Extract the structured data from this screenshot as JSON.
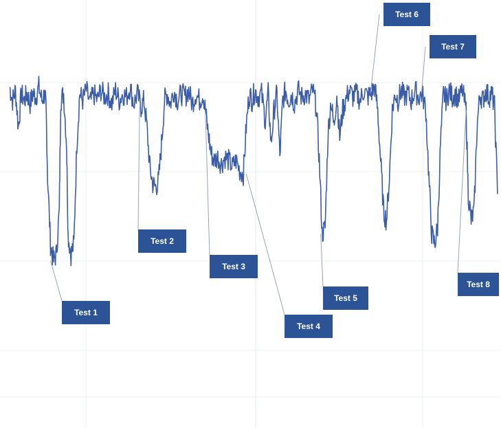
{
  "chart_data": {
    "type": "line",
    "title": "",
    "xlabel": "",
    "ylabel": "",
    "grid": true,
    "line_color": "#3b5ca8",
    "label_box_color": "#2b5395",
    "series": [
      {
        "name": "",
        "points": [
          [
            0,
            0.62
          ],
          [
            0.4,
            0.58
          ],
          [
            0.8,
            0.61
          ],
          [
            1.2,
            0.5
          ],
          [
            1.6,
            0.6
          ],
          [
            2.0,
            0.58
          ],
          [
            2.4,
            0.6
          ],
          [
            2.8,
            0.57
          ],
          [
            3.2,
            0.6
          ],
          [
            3.6,
            0.59
          ],
          [
            4.0,
            0.62
          ],
          [
            4.4,
            0.58
          ],
          [
            4.8,
            0.6
          ],
          [
            5.0,
            0.55
          ],
          [
            5.2,
            0.35
          ],
          [
            5.6,
            0.15
          ],
          [
            6.0,
            0.1
          ],
          [
            6.4,
            0.12
          ],
          [
            6.8,
            0.25
          ],
          [
            7.0,
            0.58
          ],
          [
            7.4,
            0.6
          ],
          [
            7.8,
            0.45
          ],
          [
            8.0,
            0.18
          ],
          [
            8.4,
            0.12
          ],
          [
            8.8,
            0.15
          ],
          [
            9.2,
            0.45
          ],
          [
            9.6,
            0.6
          ],
          [
            10.0,
            0.58
          ],
          [
            10.5,
            0.61
          ],
          [
            11.0,
            0.57
          ],
          [
            11.5,
            0.6
          ],
          [
            12.0,
            0.58
          ],
          [
            12.5,
            0.61
          ],
          [
            13.0,
            0.59
          ],
          [
            13.5,
            0.6
          ],
          [
            14.0,
            0.57
          ],
          [
            14.5,
            0.61
          ],
          [
            15.0,
            0.58
          ],
          [
            15.5,
            0.6
          ],
          [
            16.0,
            0.59
          ],
          [
            16.5,
            0.62
          ],
          [
            17.0,
            0.57
          ],
          [
            17.5,
            0.6
          ],
          [
            18.0,
            0.56
          ],
          [
            18.4,
            0.58
          ],
          [
            18.8,
            0.5
          ],
          [
            19.2,
            0.38
          ],
          [
            19.6,
            0.33
          ],
          [
            20.0,
            0.32
          ],
          [
            20.4,
            0.34
          ],
          [
            20.8,
            0.45
          ],
          [
            21.2,
            0.58
          ],
          [
            21.6,
            0.6
          ],
          [
            22.0,
            0.57
          ],
          [
            22.5,
            0.61
          ],
          [
            23.0,
            0.58
          ],
          [
            23.5,
            0.6
          ],
          [
            24.0,
            0.59
          ],
          [
            24.5,
            0.61
          ],
          [
            25.0,
            0.57
          ],
          [
            25.5,
            0.6
          ],
          [
            26.0,
            0.58
          ],
          [
            26.5,
            0.6
          ],
          [
            26.8,
            0.55
          ],
          [
            27.2,
            0.48
          ],
          [
            27.6,
            0.42
          ],
          [
            28.0,
            0.4
          ],
          [
            28.5,
            0.41
          ],
          [
            29.0,
            0.39
          ],
          [
            29.5,
            0.41
          ],
          [
            30.0,
            0.4
          ],
          [
            30.5,
            0.38
          ],
          [
            31.0,
            0.4
          ],
          [
            31.5,
            0.37
          ],
          [
            32.0,
            0.36
          ],
          [
            32.4,
            0.5
          ],
          [
            32.8,
            0.6
          ],
          [
            33.2,
            0.58
          ],
          [
            33.6,
            0.61
          ],
          [
            34.0,
            0.59
          ],
          [
            34.5,
            0.6
          ],
          [
            35.0,
            0.52
          ],
          [
            35.4,
            0.6
          ],
          [
            35.8,
            0.45
          ],
          [
            36.2,
            0.55
          ],
          [
            36.6,
            0.6
          ],
          [
            37.0,
            0.41
          ],
          [
            37.4,
            0.58
          ],
          [
            37.8,
            0.61
          ],
          [
            38.2,
            0.58
          ],
          [
            38.6,
            0.6
          ],
          [
            39.0,
            0.57
          ],
          [
            39.5,
            0.61
          ],
          [
            40.0,
            0.59
          ],
          [
            40.5,
            0.6
          ],
          [
            41.0,
            0.58
          ],
          [
            41.5,
            0.61
          ],
          [
            42.0,
            0.56
          ],
          [
            42.4,
            0.4
          ],
          [
            42.8,
            0.18
          ],
          [
            43.2,
            0.2
          ],
          [
            43.6,
            0.48
          ],
          [
            44.0,
            0.58
          ],
          [
            44.4,
            0.5
          ],
          [
            44.8,
            0.6
          ],
          [
            45.2,
            0.47
          ],
          [
            45.6,
            0.55
          ],
          [
            46.0,
            0.58
          ],
          [
            46.5,
            0.61
          ],
          [
            47.0,
            0.59
          ],
          [
            47.5,
            0.6
          ],
          [
            48.0,
            0.58
          ],
          [
            48.5,
            0.61
          ],
          [
            49.0,
            0.59
          ],
          [
            49.5,
            0.6
          ],
          [
            50.0,
            0.62
          ],
          [
            50.4,
            0.55
          ],
          [
            50.8,
            0.4
          ],
          [
            51.2,
            0.25
          ],
          [
            51.6,
            0.22
          ],
          [
            52.0,
            0.35
          ],
          [
            52.4,
            0.55
          ],
          [
            52.8,
            0.6
          ],
          [
            53.2,
            0.58
          ],
          [
            53.6,
            0.61
          ],
          [
            54.0,
            0.59
          ],
          [
            54.5,
            0.6
          ],
          [
            55.0,
            0.58
          ],
          [
            55.5,
            0.61
          ],
          [
            56.0,
            0.59
          ],
          [
            56.5,
            0.6
          ],
          [
            57.0,
            0.55
          ],
          [
            57.4,
            0.35
          ],
          [
            57.8,
            0.18
          ],
          [
            58.2,
            0.15
          ],
          [
            58.6,
            0.2
          ],
          [
            59.0,
            0.45
          ],
          [
            59.4,
            0.6
          ],
          [
            59.8,
            0.58
          ],
          [
            60.2,
            0.61
          ],
          [
            60.6,
            0.59
          ],
          [
            61.0,
            0.6
          ],
          [
            61.5,
            0.58
          ],
          [
            62.0,
            0.61
          ],
          [
            62.5,
            0.55
          ],
          [
            62.8,
            0.3
          ],
          [
            63.2,
            0.22
          ],
          [
            63.6,
            0.25
          ],
          [
            64.0,
            0.5
          ],
          [
            64.4,
            0.6
          ],
          [
            64.8,
            0.58
          ],
          [
            65.2,
            0.61
          ],
          [
            65.6,
            0.59
          ],
          [
            66.0,
            0.6
          ],
          [
            66.4,
            0.56
          ],
          [
            66.8,
            0.3
          ]
        ]
      }
    ],
    "xlim": [
      0,
      67
    ],
    "ylim": [
      -0.4,
      0.88
    ],
    "annotations": [
      {
        "text": "Test 1",
        "x": 5.6,
        "y": 0.1
      },
      {
        "text": "Test 2",
        "x": 17.8,
        "y": 0.56
      },
      {
        "text": "Test 3",
        "x": 26.8,
        "y": 0.55
      },
      {
        "text": "Test 4",
        "x": 32.4,
        "y": 0.36
      },
      {
        "text": "Test 5",
        "x": 42.6,
        "y": 0.18
      },
      {
        "text": "Test 6",
        "x": 49.4,
        "y": 0.6
      },
      {
        "text": "Test 7",
        "x": 56.4,
        "y": 0.6
      },
      {
        "text": "Test 8",
        "x": 62.5,
        "y": 0.55
      }
    ]
  }
}
